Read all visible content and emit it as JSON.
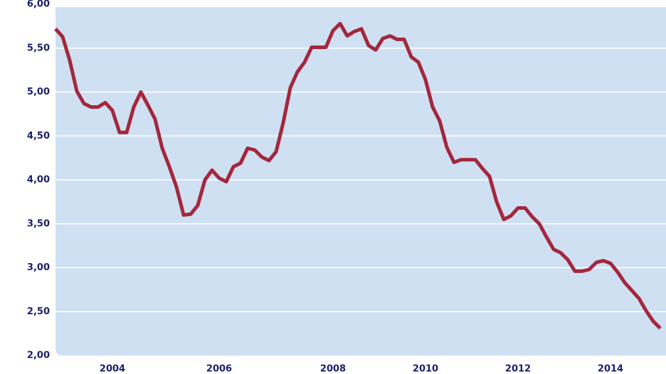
{
  "chart_data": {
    "type": "line",
    "categories": [
      null,
      null,
      null,
      null,
      null,
      null,
      null,
      null,
      "2004",
      null,
      null,
      null,
      null,
      null,
      null,
      null,
      null,
      null,
      null,
      null,
      null,
      null,
      null,
      "2006",
      null,
      null,
      null,
      null,
      null,
      null,
      null,
      null,
      null,
      null,
      null,
      null,
      null,
      null,
      null,
      "2008",
      null,
      null,
      null,
      null,
      null,
      null,
      null,
      null,
      null,
      null,
      null,
      null,
      "2010",
      null,
      null,
      null,
      null,
      null,
      null,
      null,
      null,
      null,
      null,
      null,
      null,
      "2012",
      null,
      null,
      null,
      null,
      null,
      null,
      null,
      null,
      null,
      null,
      null,
      null,
      "2014",
      null,
      null,
      null,
      null,
      null,
      null,
      null
    ],
    "series": [
      {
        "color": "#a3283d",
        "values": [
          5.72,
          5.63,
          5.36,
          5.01,
          4.87,
          4.83,
          4.83,
          4.88,
          4.79,
          4.54,
          4.54,
          4.83,
          5.0,
          4.85,
          4.69,
          4.36,
          4.15,
          3.92,
          3.6,
          3.61,
          3.71,
          4.0,
          4.11,
          4.02,
          3.98,
          4.15,
          4.19,
          4.36,
          4.34,
          4.26,
          4.22,
          4.32,
          4.65,
          5.05,
          5.23,
          5.34,
          5.51,
          5.51,
          5.51,
          5.7,
          5.78,
          5.64,
          5.69,
          5.72,
          5.53,
          5.48,
          5.61,
          5.64,
          5.6,
          5.6,
          5.4,
          5.34,
          5.14,
          4.83,
          4.67,
          4.37,
          4.2,
          4.23,
          4.23,
          4.23,
          4.13,
          4.04,
          3.75,
          3.55,
          3.59,
          3.68,
          3.68,
          3.58,
          3.5,
          3.35,
          3.21,
          3.17,
          3.09,
          2.96,
          2.96,
          2.98,
          3.06,
          3.08,
          3.05,
          2.95,
          2.83,
          2.74,
          2.65,
          2.51,
          2.39,
          2.31
        ]
      }
    ],
    "ylim": [
      2,
      6
    ],
    "yticks": [
      {
        "value": 2,
        "label": "2,00"
      },
      {
        "value": 2.5,
        "label": "2,50"
      },
      {
        "value": 3,
        "label": "3,00"
      },
      {
        "value": 3.5,
        "label": "3,50"
      },
      {
        "value": 4,
        "label": "4,00"
      },
      {
        "value": 4.5,
        "label": "4,50"
      },
      {
        "value": 5,
        "label": "5,00"
      },
      {
        "value": 5.5,
        "label": "5,50"
      },
      {
        "value": 6,
        "label": "6,00"
      }
    ],
    "grid": true
  }
}
